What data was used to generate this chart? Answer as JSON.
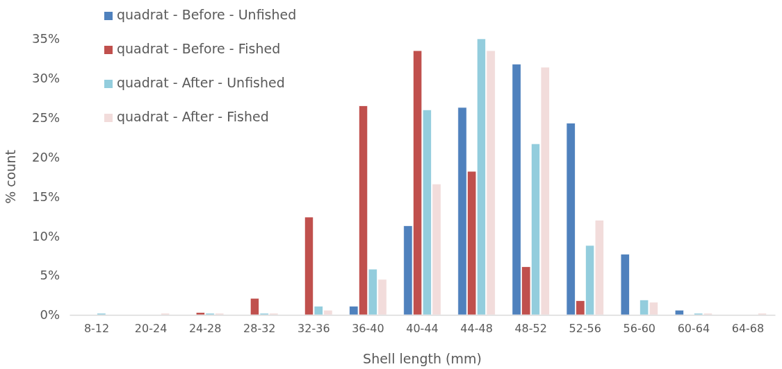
{
  "chart_data": {
    "type": "bar",
    "xlabel": "Shell length (mm)",
    "ylabel": "% count",
    "categories": [
      "8-12",
      "20-24",
      "24-28",
      "28-32",
      "32-36",
      "36-40",
      "40-44",
      "44-48",
      "48-52",
      "52-56",
      "56-60",
      "60-64",
      "64-68"
    ],
    "series": [
      {
        "name": "quadrat - Before - Unfished",
        "color": "#4f81bd",
        "values": [
          0,
          0,
          0,
          0,
          0,
          1.1,
          11.3,
          26.3,
          31.8,
          24.3,
          7.7,
          0.6,
          0
        ]
      },
      {
        "name": "quadrat - Before - Fished",
        "color": "#c0504d",
        "values": [
          0,
          0,
          0.3,
          2.1,
          12.4,
          26.5,
          33.5,
          18.2,
          6.1,
          1.8,
          0,
          0,
          0
        ]
      },
      {
        "name": "quadrat - After - Unfished",
        "color": "#93cddd",
        "values": [
          0.2,
          0,
          0.2,
          0.2,
          1.1,
          5.8,
          26.0,
          35,
          21.7,
          8.8,
          1.9,
          0.2,
          0
        ]
      },
      {
        "name": "quadrat - After - Fished",
        "color": "#f2dcdb",
        "values": [
          0,
          0.2,
          0.2,
          0.2,
          0.6,
          4.5,
          16.6,
          33.5,
          31.4,
          12.0,
          1.6,
          0.2,
          0.2
        ]
      }
    ],
    "ylim": [
      0,
      35
    ],
    "yticks": [
      {
        "value": 0,
        "label": "0%"
      },
      {
        "value": 5,
        "label": "5%"
      },
      {
        "value": 10,
        "label": "10%"
      },
      {
        "value": 15,
        "label": "15%"
      },
      {
        "value": 20,
        "label": "20%"
      },
      {
        "value": 25,
        "label": "25%"
      },
      {
        "value": 30,
        "label": "30%"
      },
      {
        "value": 35,
        "label": "35%"
      }
    ],
    "legend": "top left",
    "grid": false
  }
}
